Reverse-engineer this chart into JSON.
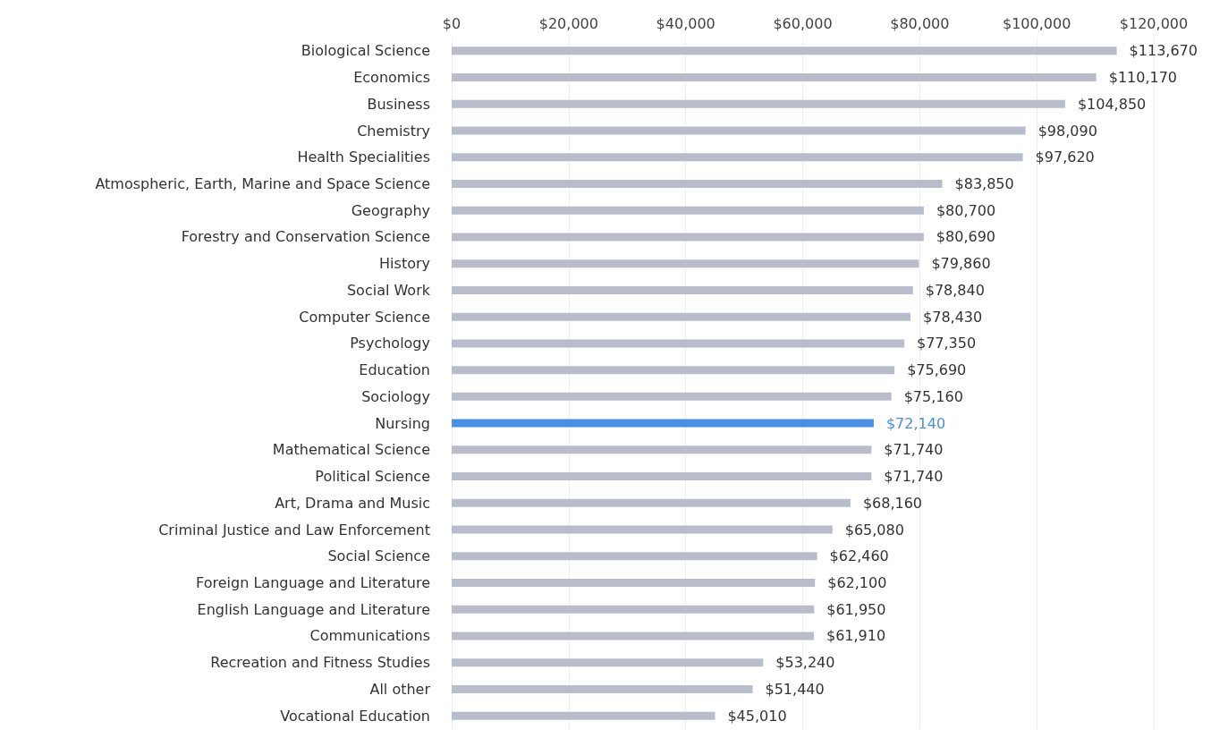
{
  "chart_data": {
    "type": "bar",
    "orientation": "horizontal",
    "categories": [
      "Biological Science",
      "Economics",
      "Business",
      "Chemistry",
      "Health Specialities",
      "Atmospheric, Earth, Marine and Space Science",
      "Geography",
      "Forestry and Conservation Science",
      "History",
      "Social Work",
      "Computer Science",
      "Psychology",
      "Education",
      "Sociology",
      "Nursing",
      "Mathematical Science",
      "Political Science",
      "Art, Drama and Music",
      "Criminal Justice and Law Enforcement",
      "Social Science",
      "Foreign Language and Literature",
      "English Language and Literature",
      "Communications",
      "Recreation and Fitness Studies",
      "All other",
      "Vocational Education"
    ],
    "values": [
      113670,
      110170,
      104850,
      98090,
      97620,
      83850,
      80700,
      80690,
      79860,
      78840,
      78430,
      77350,
      75690,
      75160,
      72140,
      71740,
      71740,
      68160,
      65080,
      62460,
      62100,
      61950,
      61910,
      53240,
      51440,
      45010
    ],
    "value_labels": [
      "$113,670",
      "$110,170",
      "$104,850",
      "$98,090",
      "$97,620",
      "$83,850",
      "$80,700",
      "$80,690",
      "$79,860",
      "$78,840",
      "$78,430",
      "$77,350",
      "$75,690",
      "$75,160",
      "$72,140",
      "$71,740",
      "$71,740",
      "$68,160",
      "$65,080",
      "$62,460",
      "$62,100",
      "$61,950",
      "$61,910",
      "$53,240",
      "$51,440",
      "$45,010"
    ],
    "colors": [
      "#b9bccb",
      "#b9bccb",
      "#b9bccb",
      "#b9bccb",
      "#b9bccb",
      "#b9bccb",
      "#b9bccb",
      "#b9bccb",
      "#b9bccb",
      "#b9bccb",
      "#b9bccb",
      "#b9bccb",
      "#b9bccb",
      "#b9bccb",
      "#4a8fe6",
      "#b9bccb",
      "#b9bccb",
      "#b9bccb",
      "#b9bccb",
      "#b9bccb",
      "#b9bccb",
      "#b9bccb",
      "#b9bccb",
      "#b9bccb",
      "#b9bccb",
      "#b9bccb"
    ],
    "xlim": [
      0,
      120000
    ],
    "xticks": [
      {
        "value": 0,
        "label": "$0"
      },
      {
        "value": 20000,
        "label": "$20,000"
      },
      {
        "value": 40000,
        "label": "$40,000"
      },
      {
        "value": 60000,
        "label": "$60,000"
      },
      {
        "value": 80000,
        "label": "$80,000"
      },
      {
        "value": 100000,
        "label": "$100,000"
      },
      {
        "value": 120000,
        "label": "$120,000"
      }
    ],
    "grid": "x"
  }
}
